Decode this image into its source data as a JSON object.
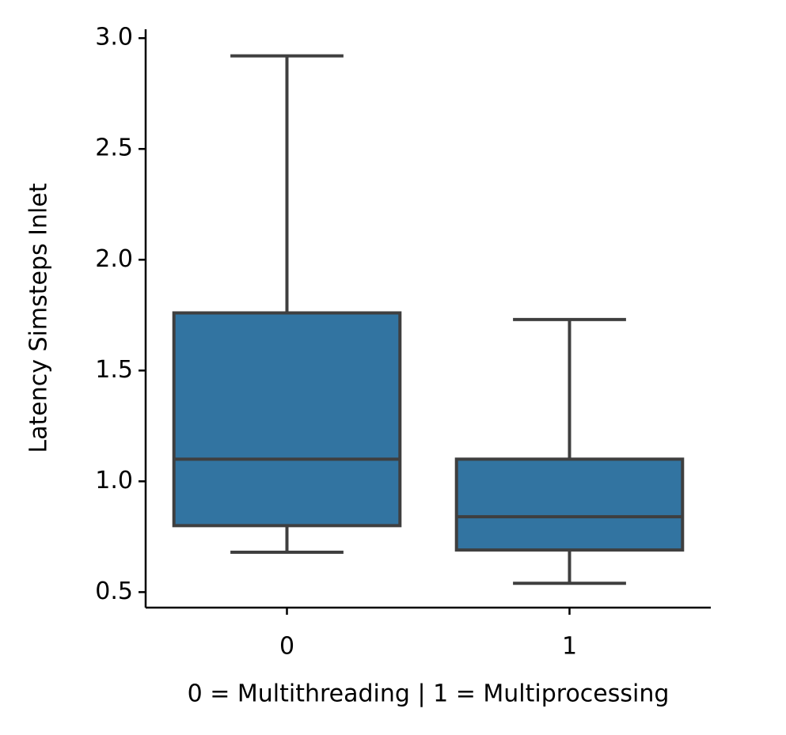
{
  "chart_data": {
    "type": "box",
    "x_label": "0 = Multithreading | 1 = Multiprocessing",
    "y_label": "Latency Simsteps Inlet",
    "categories": [
      "0",
      "1"
    ],
    "color": "#3274a1",
    "boxes": [
      {
        "whislo": 0.68,
        "q1": 0.8,
        "med": 1.1,
        "q3": 1.76,
        "whishi": 2.92
      },
      {
        "whislo": 0.54,
        "q1": 0.69,
        "med": 0.84,
        "q3": 1.1,
        "whishi": 1.73
      }
    ],
    "ylim": [
      0.43,
      3.04
    ],
    "yticks": [
      0.5,
      {
        "value": 1,
        "label": "1.0"
      },
      1.5,
      {
        "value": 2,
        "label": "2.0"
      },
      2.5,
      {
        "value": 3,
        "label": "3.0"
      }
    ]
  }
}
